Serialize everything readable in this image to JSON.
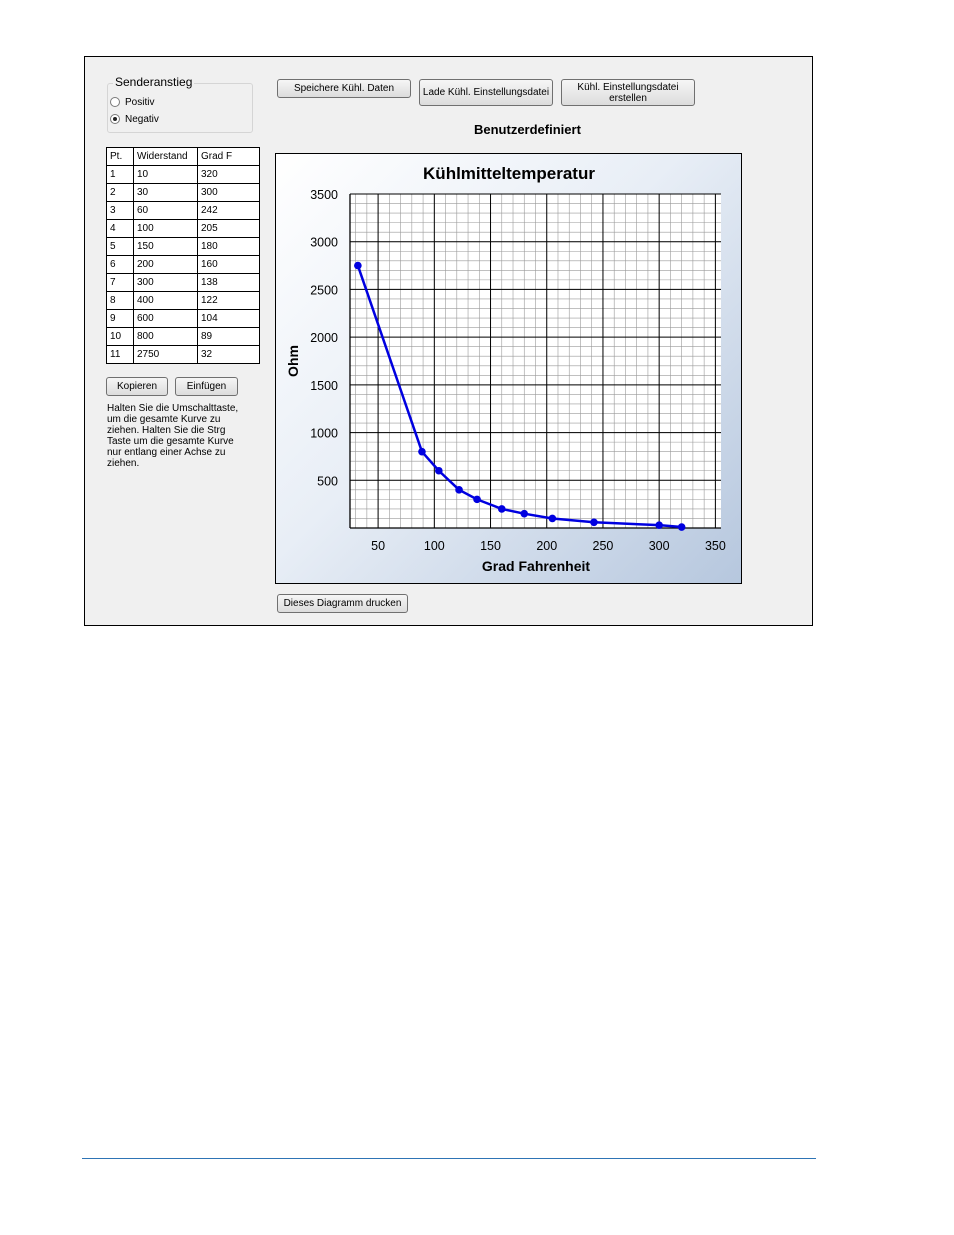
{
  "sender": {
    "title": "Senderanstieg",
    "options": [
      {
        "label": "Positiv",
        "selected": false
      },
      {
        "label": "Negativ",
        "selected": true
      }
    ]
  },
  "buttons": {
    "save": "Speichere Kühl. Daten",
    "load": "Lade Kühl. Einstellungsdatei",
    "create": "Kühl. Einstellungsdatei erstellen",
    "copy": "Kopieren",
    "paste": "Einfügen",
    "print": "Dieses Diagramm drucken"
  },
  "subtitle": "Benutzerdefiniert",
  "table": {
    "headers": [
      "Pt.",
      "Widerstand",
      "Grad F"
    ],
    "rows": [
      [
        "1",
        "10",
        "320"
      ],
      [
        "2",
        "30",
        "300"
      ],
      [
        "3",
        "60",
        "242"
      ],
      [
        "4",
        "100",
        "205"
      ],
      [
        "5",
        "150",
        "180"
      ],
      [
        "6",
        "200",
        "160"
      ],
      [
        "7",
        "300",
        "138"
      ],
      [
        "8",
        "400",
        "122"
      ],
      [
        "9",
        "600",
        "104"
      ],
      [
        "10",
        "800",
        "89"
      ],
      [
        "11",
        "2750",
        "32"
      ]
    ]
  },
  "hint": "Halten Sie die Umschalttaste,\num die gesamte Kurve zu\nziehen.  Halten Sie die Strg\nTaste um die gesamte Kurve\nnur entlang einer Achse zu\nziehen.",
  "colors": {
    "series": "#0000e0",
    "grid": "#000000"
  },
  "chart_data": {
    "type": "line",
    "title": "Kühlmitteltemperatur",
    "xlabel": "Grad Fahrenheit",
    "ylabel": "Ohm",
    "xlim": [
      25,
      355
    ],
    "ylim": [
      0,
      3500
    ],
    "xticks": [
      50,
      100,
      150,
      200,
      250,
      300,
      350
    ],
    "yticks": [
      500,
      1000,
      1500,
      2000,
      2500,
      3000,
      3500
    ],
    "grid": true,
    "series": [
      {
        "x": [
          32,
          89,
          104,
          122,
          138,
          160,
          180,
          205,
          242,
          300,
          320
        ],
        "y": [
          2750,
          800,
          600,
          400,
          300,
          200,
          150,
          100,
          60,
          30,
          10
        ]
      }
    ]
  }
}
